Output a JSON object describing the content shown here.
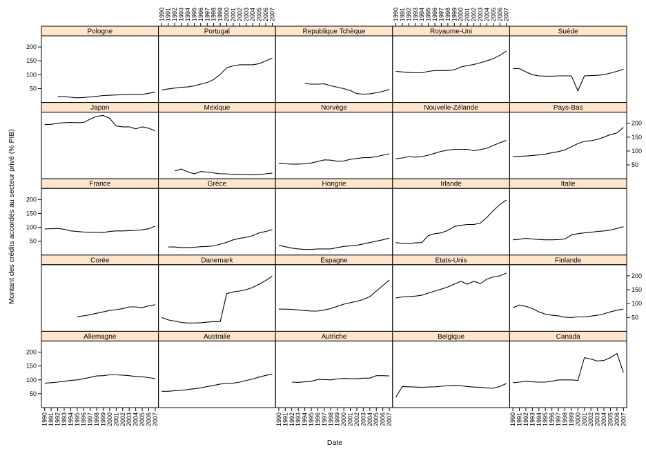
{
  "chart_data": {
    "type": "line",
    "xlabel": "Date",
    "ylabel": "Montant des crédits accordés au secteur privé (% PIB)",
    "x": [
      1990,
      1991,
      1992,
      1993,
      1994,
      1995,
      1996,
      1997,
      1998,
      1999,
      2000,
      2001,
      2002,
      2003,
      2004,
      2005,
      2006,
      2007
    ],
    "xlim": [
      1989.5,
      2007.5
    ],
    "ylim": [
      0,
      240
    ],
    "y_ticks": [
      50,
      100,
      150,
      200
    ],
    "x_tick_labels": [
      "1990",
      "1991",
      "1992",
      "1993",
      "1994",
      "1995",
      "1996",
      "1997",
      "1998",
      "1999",
      "2000",
      "2001",
      "2002",
      "2003",
      "2004",
      "2005",
      "2006",
      "2007"
    ],
    "layout": {
      "columns": 5,
      "rows": 5
    },
    "series": [
      {
        "name": "Pologne",
        "values": [
          null,
          null,
          21,
          21,
          19,
          17,
          18,
          20,
          22,
          25,
          26,
          27,
          28,
          28,
          29,
          29,
          33,
          38
        ]
      },
      {
        "name": "Portugal",
        "values": [
          45,
          49,
          52,
          55,
          56,
          60,
          66,
          72,
          83,
          101,
          125,
          132,
          136,
          136,
          136,
          140,
          150,
          160
        ]
      },
      {
        "name": "Republique Tchèque",
        "values": [
          null,
          null,
          null,
          null,
          68,
          66,
          66,
          67,
          60,
          55,
          50,
          43,
          32,
          30,
          31,
          35,
          40,
          47
        ]
      },
      {
        "name": "Royaume-Uni",
        "values": [
          112,
          110,
          108,
          107,
          107,
          112,
          115,
          115,
          115,
          118,
          128,
          133,
          137,
          143,
          150,
          158,
          170,
          185
        ]
      },
      {
        "name": "Suède",
        "values": [
          122,
          122,
          110,
          100,
          96,
          95,
          95,
          96,
          96,
          96,
          42,
          96,
          97,
          98,
          100,
          106,
          112,
          120
        ]
      },
      {
        "name": "Japon",
        "values": [
          195,
          196,
          200,
          202,
          203,
          202,
          203,
          215,
          225,
          228,
          218,
          190,
          187,
          187,
          180,
          187,
          182,
          173
        ]
      },
      {
        "name": "Mexique",
        "values": [
          null,
          null,
          28,
          35,
          25,
          18,
          26,
          24,
          21,
          18,
          18,
          15,
          16,
          15,
          14,
          15,
          18,
          20
        ]
      },
      {
        "name": "Norvège",
        "values": [
          55,
          54,
          53,
          53,
          54,
          57,
          62,
          68,
          67,
          63,
          64,
          70,
          73,
          76,
          76,
          80,
          85,
          90
        ]
      },
      {
        "name": "Nouvelle-Zélande",
        "values": [
          72,
          75,
          80,
          78,
          80,
          85,
          92,
          99,
          103,
          106,
          106,
          106,
          101,
          105,
          110,
          120,
          130,
          138
        ]
      },
      {
        "name": "Pays-Bas",
        "values": [
          80,
          81,
          82,
          84,
          86,
          89,
          94,
          98,
          104,
          115,
          127,
          135,
          137,
          142,
          150,
          159,
          165,
          185
        ]
      },
      {
        "name": "France",
        "values": [
          94,
          95,
          96,
          93,
          87,
          85,
          83,
          82,
          82,
          81,
          85,
          87,
          87,
          88,
          89,
          91,
          95,
          104
        ]
      },
      {
        "name": "Grèce",
        "values": [
          null,
          29,
          29,
          27,
          27,
          28,
          30,
          31,
          33,
          39,
          46,
          55,
          60,
          64,
          70,
          80,
          85,
          92
        ]
      },
      {
        "name": "Hongrie",
        "values": [
          35,
          30,
          25,
          22,
          20,
          20,
          22,
          22,
          22,
          27,
          31,
          33,
          35,
          40,
          45,
          50,
          55,
          61
        ]
      },
      {
        "name": "Irlande",
        "values": [
          45,
          42,
          41,
          44,
          45,
          70,
          77,
          80,
          89,
          103,
          107,
          110,
          110,
          115,
          136,
          160,
          182,
          198
        ]
      },
      {
        "name": "Italie",
        "values": [
          55,
          57,
          60,
          58,
          56,
          55,
          55,
          56,
          58,
          72,
          77,
          80,
          82,
          85,
          87,
          90,
          96,
          102
        ]
      },
      {
        "name": "Corée",
        "values": [
          null,
          null,
          null,
          null,
          null,
          53,
          56,
          60,
          65,
          70,
          75,
          78,
          82,
          88,
          88,
          85,
          92,
          96
        ]
      },
      {
        "name": "Danemark",
        "values": [
          50,
          41,
          37,
          32,
          30,
          30,
          31,
          33,
          35,
          35,
          136,
          142,
          145,
          150,
          158,
          170,
          183,
          199
        ]
      },
      {
        "name": "Espagne",
        "values": [
          80,
          80,
          79,
          77,
          75,
          73,
          73,
          77,
          82,
          90,
          98,
          103,
          108,
          115,
          125,
          145,
          165,
          185
        ]
      },
      {
        "name": "Etats-Unis",
        "values": [
          120,
          124,
          125,
          127,
          130,
          138,
          145,
          152,
          160,
          170,
          180,
          170,
          180,
          172,
          188,
          196,
          200,
          210
        ]
      },
      {
        "name": "Finlande",
        "values": [
          85,
          95,
          90,
          82,
          70,
          62,
          58,
          56,
          51,
          50,
          52,
          52,
          55,
          58,
          63,
          70,
          76,
          80
        ]
      },
      {
        "name": "Allemagne",
        "values": [
          88,
          90,
          92,
          95,
          98,
          100,
          104,
          109,
          114,
          115,
          118,
          118,
          117,
          115,
          112,
          111,
          108,
          104
        ]
      },
      {
        "name": "Australie",
        "values": [
          59,
          59,
          61,
          62,
          65,
          68,
          71,
          76,
          80,
          85,
          87,
          88,
          92,
          98,
          103,
          110,
          116,
          121
        ]
      },
      {
        "name": "Autriche",
        "values": [
          null,
          null,
          92,
          91,
          93,
          95,
          101,
          101,
          100,
          103,
          105,
          104,
          104,
          106,
          106,
          115,
          115,
          114
        ]
      },
      {
        "name": "Belgique",
        "values": [
          37,
          76,
          75,
          74,
          73,
          74,
          75,
          77,
          79,
          80,
          79,
          76,
          74,
          73,
          71,
          70,
          76,
          87
        ]
      },
      {
        "name": "Canada",
        "values": [
          90,
          92,
          95,
          93,
          92,
          92,
          95,
          100,
          100,
          100,
          98,
          180,
          175,
          168,
          170,
          180,
          195,
          127
        ]
      }
    ]
  }
}
